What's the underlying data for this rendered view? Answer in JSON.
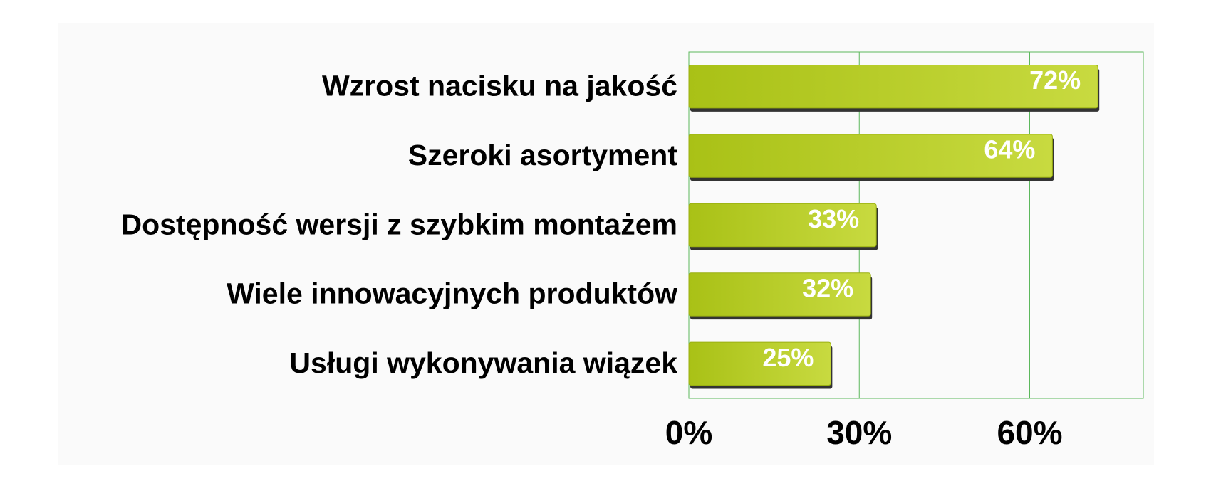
{
  "chart_data": {
    "type": "bar",
    "orientation": "horizontal",
    "categories": [
      "Wzrost nacisku na jakość",
      "Szeroki asortyment",
      "Dostępność wersji z szybkim montażem",
      "Wiele innowacyjnych produktów",
      "Usługi wykonywania wiązek"
    ],
    "values": [
      72,
      64,
      33,
      32,
      25
    ],
    "value_labels": [
      "72%",
      "64%",
      "33%",
      "32%",
      "25%"
    ],
    "color": "#b5cc22",
    "xlim": [
      0,
      80
    ],
    "xticks": [
      {
        "value": 0,
        "label": "0%"
      },
      {
        "value": 30,
        "label": "30%"
      },
      {
        "value": 60,
        "label": "60%"
      }
    ],
    "grid": true
  }
}
